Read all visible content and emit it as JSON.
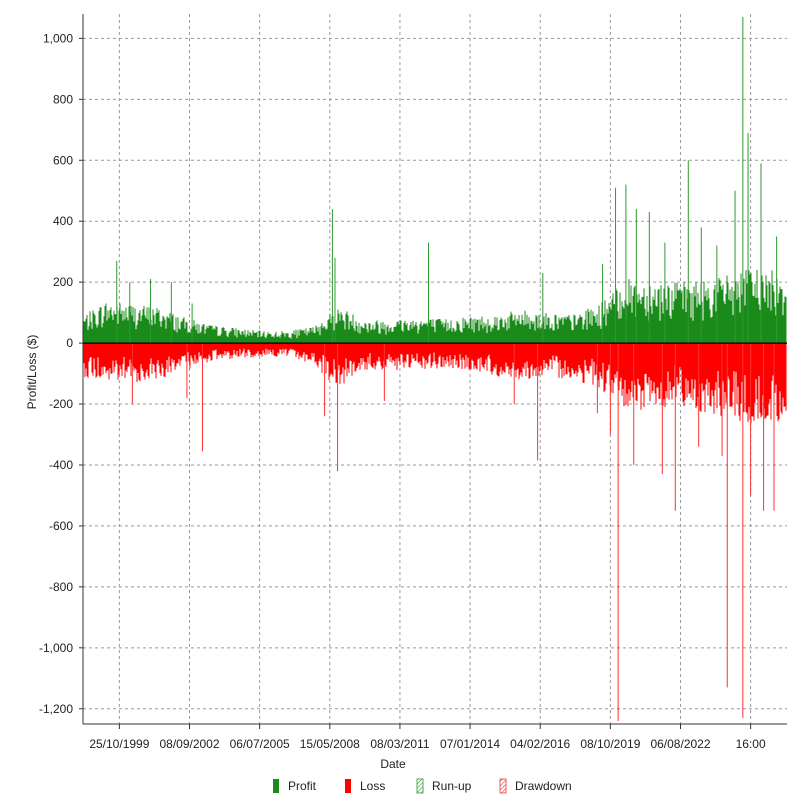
{
  "chart_data": {
    "type": "bar",
    "title": "",
    "xlabel": "Date",
    "ylabel": "Profit/Loss ($)",
    "ylim": [
      -1250,
      1080
    ],
    "yticks": [
      1000,
      800,
      600,
      400,
      200,
      0,
      -200,
      -400,
      -600,
      -800,
      -1000,
      -1200
    ],
    "ytick_labels": [
      "1,000",
      "800",
      "600",
      "400",
      "200",
      "0",
      "-200",
      "-400",
      "-600",
      "-800",
      "-1,000",
      "-1,200"
    ],
    "xlim": [
      1998.6,
      2025.7
    ],
    "xticks": [
      2000,
      2002.7,
      2005.4,
      2008.1,
      2010.8,
      2013.5,
      2016.2,
      2018.9,
      2021.6,
      2024.3
    ],
    "xtick_labels": [
      "25/10/1999",
      "08/09/2002",
      "06/07/2005",
      "15/05/2008",
      "08/03/2011",
      "07/01/2014",
      "04/02/2016",
      "08/10/2019",
      "06/08/2022",
      "16:00"
    ],
    "grid": true,
    "legend_position": "bottom",
    "series": [
      {
        "name": "Profit",
        "color": "#1a8a1a",
        "style": "solid"
      },
      {
        "name": "Loss",
        "color": "#ff0000",
        "style": "solid"
      },
      {
        "name": "Run-up",
        "color": "#2e9a2e",
        "style": "hatched"
      },
      {
        "name": "Drawdown",
        "color": "#ff3030",
        "style": "hatched"
      }
    ],
    "profit_envelope": {
      "x": [
        1998.6,
        1999.5,
        2000.5,
        2001.5,
        2002.5,
        2003.5,
        2004.5,
        2005.5,
        2006.5,
        2007.5,
        2008.0,
        2008.5,
        2009.5,
        2010.5,
        2011.5,
        2012.5,
        2013.5,
        2014.5,
        2015.5,
        2016.5,
        2017.5,
        2018.5,
        2019.5,
        2020.5,
        2021.5,
        2022.5,
        2023.5,
        2024.5,
        2025.7
      ],
      "y": [
        90,
        140,
        130,
        120,
        85,
        60,
        50,
        40,
        40,
        55,
        95,
        120,
        75,
        80,
        85,
        80,
        90,
        95,
        110,
        100,
        95,
        130,
        210,
        210,
        200,
        210,
        230,
        250,
        230
      ]
    },
    "loss_envelope": {
      "x": [
        1998.6,
        1999.5,
        2000.5,
        2001.5,
        2002.5,
        2003.5,
        2004.5,
        2005.5,
        2006.5,
        2007.5,
        2008.0,
        2008.5,
        2009.5,
        2010.5,
        2011.5,
        2012.5,
        2013.5,
        2014.5,
        2015.5,
        2016.5,
        2017.5,
        2018.5,
        2019.5,
        2020.5,
        2021.5,
        2022.5,
        2023.5,
        2024.5,
        2025.7
      ],
      "y": [
        -110,
        -130,
        -130,
        -120,
        -90,
        -60,
        -50,
        -45,
        -45,
        -70,
        -120,
        -140,
        -90,
        -90,
        -90,
        -85,
        -90,
        -110,
        -120,
        -110,
        -120,
        -150,
        -230,
        -220,
        -200,
        -230,
        -250,
        -280,
        -260
      ]
    },
    "profit_spikes": [
      {
        "x": 1999.9,
        "y": 270
      },
      {
        "x": 2000.4,
        "y": 200
      },
      {
        "x": 2001.2,
        "y": 210
      },
      {
        "x": 2002.0,
        "y": 200
      },
      {
        "x": 2002.8,
        "y": 130
      },
      {
        "x": 2008.2,
        "y": 440
      },
      {
        "x": 2008.3,
        "y": 280
      },
      {
        "x": 2011.9,
        "y": 330
      },
      {
        "x": 2016.3,
        "y": 230
      },
      {
        "x": 2018.6,
        "y": 260
      },
      {
        "x": 2019.1,
        "y": 510
      },
      {
        "x": 2019.5,
        "y": 520
      },
      {
        "x": 2019.9,
        "y": 440
      },
      {
        "x": 2020.4,
        "y": 430
      },
      {
        "x": 2021.0,
        "y": 330
      },
      {
        "x": 2021.9,
        "y": 600
      },
      {
        "x": 2022.4,
        "y": 380
      },
      {
        "x": 2023.0,
        "y": 320
      },
      {
        "x": 2023.7,
        "y": 500
      },
      {
        "x": 2024.0,
        "y": 1070
      },
      {
        "x": 2024.2,
        "y": 690
      },
      {
        "x": 2024.7,
        "y": 590
      },
      {
        "x": 2025.3,
        "y": 350
      }
    ],
    "loss_spikes": [
      {
        "x": 2000.5,
        "y": -200
      },
      {
        "x": 2002.6,
        "y": -180
      },
      {
        "x": 2003.2,
        "y": -355
      },
      {
        "x": 2007.9,
        "y": -240
      },
      {
        "x": 2008.4,
        "y": -420
      },
      {
        "x": 2010.2,
        "y": -190
      },
      {
        "x": 2015.2,
        "y": -200
      },
      {
        "x": 2016.1,
        "y": -385
      },
      {
        "x": 2018.4,
        "y": -230
      },
      {
        "x": 2018.9,
        "y": -300
      },
      {
        "x": 2019.2,
        "y": -1240
      },
      {
        "x": 2019.8,
        "y": -400
      },
      {
        "x": 2020.9,
        "y": -430
      },
      {
        "x": 2021.4,
        "y": -550
      },
      {
        "x": 2022.3,
        "y": -340
      },
      {
        "x": 2023.2,
        "y": -370
      },
      {
        "x": 2023.4,
        "y": -1130
      },
      {
        "x": 2024.0,
        "y": -1230
      },
      {
        "x": 2024.3,
        "y": -500
      },
      {
        "x": 2024.8,
        "y": -550
      },
      {
        "x": 2025.2,
        "y": -550
      }
    ]
  }
}
